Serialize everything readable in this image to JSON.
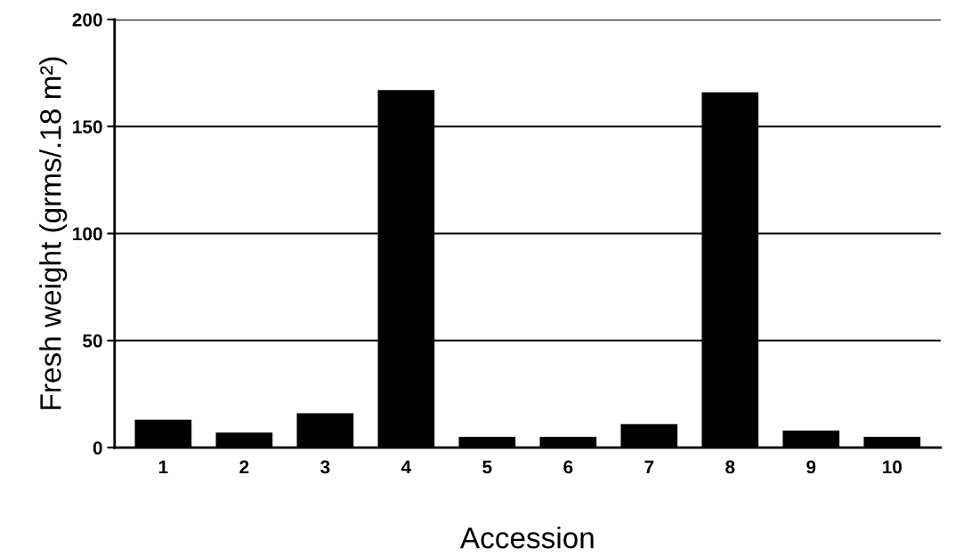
{
  "chart_data": {
    "type": "bar",
    "xlabel": "Accession",
    "ylabel": "Fresh weight (grms/.18 m²)",
    "categories": [
      "1",
      "2",
      "3",
      "4",
      "5",
      "6",
      "7",
      "8",
      "9",
      "10"
    ],
    "values": [
      13,
      7,
      16,
      167,
      5,
      5,
      11,
      166,
      8,
      5
    ],
    "color": "#000000",
    "ylim": [
      0,
      200
    ],
    "yticks": [
      0,
      50,
      100,
      150,
      200
    ],
    "grid": "y"
  }
}
